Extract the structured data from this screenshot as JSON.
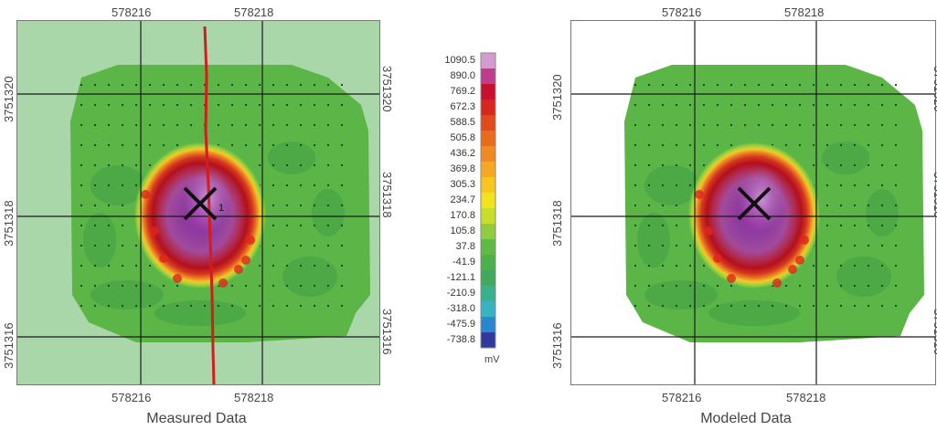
{
  "chart_data": [
    {
      "type": "heatmap",
      "title": "Measured Data",
      "x_ticks": [
        "578216",
        "578218"
      ],
      "y_ticks": [
        "3751320",
        "3751318",
        "3751316"
      ],
      "has_survey_line": true,
      "marker_label": "1",
      "background": "#a9d7a9"
    },
    {
      "type": "heatmap",
      "title": "Modeled Data",
      "x_ticks": [
        "578216",
        "578218"
      ],
      "y_ticks": [
        "3751320",
        "3751318",
        "3751316"
      ],
      "has_survey_line": false,
      "background": "#ffffff"
    }
  ],
  "colorbar": {
    "unit": "mV",
    "levels": [
      {
        "value": "1090.5",
        "color": "#d59ad0"
      },
      {
        "value": "890.0",
        "color": "#c03c8c"
      },
      {
        "value": "769.2",
        "color": "#c8102e"
      },
      {
        "value": "672.3",
        "color": "#d7261e"
      },
      {
        "value": "588.5",
        "color": "#e04a1c"
      },
      {
        "value": "505.8",
        "color": "#ea6b1e"
      },
      {
        "value": "436.2",
        "color": "#f08a23"
      },
      {
        "value": "369.8",
        "color": "#f6a823"
      },
      {
        "value": "305.3",
        "color": "#f9c51f"
      },
      {
        "value": "234.7",
        "color": "#f4e31c"
      },
      {
        "value": "170.8",
        "color": "#c8df2a"
      },
      {
        "value": "105.8",
        "color": "#8fcc3e"
      },
      {
        "value": "37.8",
        "color": "#5dbb45"
      },
      {
        "value": "-41.9",
        "color": "#4db04a"
      },
      {
        "value": "-121.1",
        "color": "#41a95c"
      },
      {
        "value": "-210.9",
        "color": "#39b08e"
      },
      {
        "value": "-318.0",
        "color": "#36b4c4"
      },
      {
        "value": "-475.9",
        "color": "#2b86d0"
      },
      {
        "value": "-738.8",
        "color": "#2e3a9e"
      }
    ]
  }
}
